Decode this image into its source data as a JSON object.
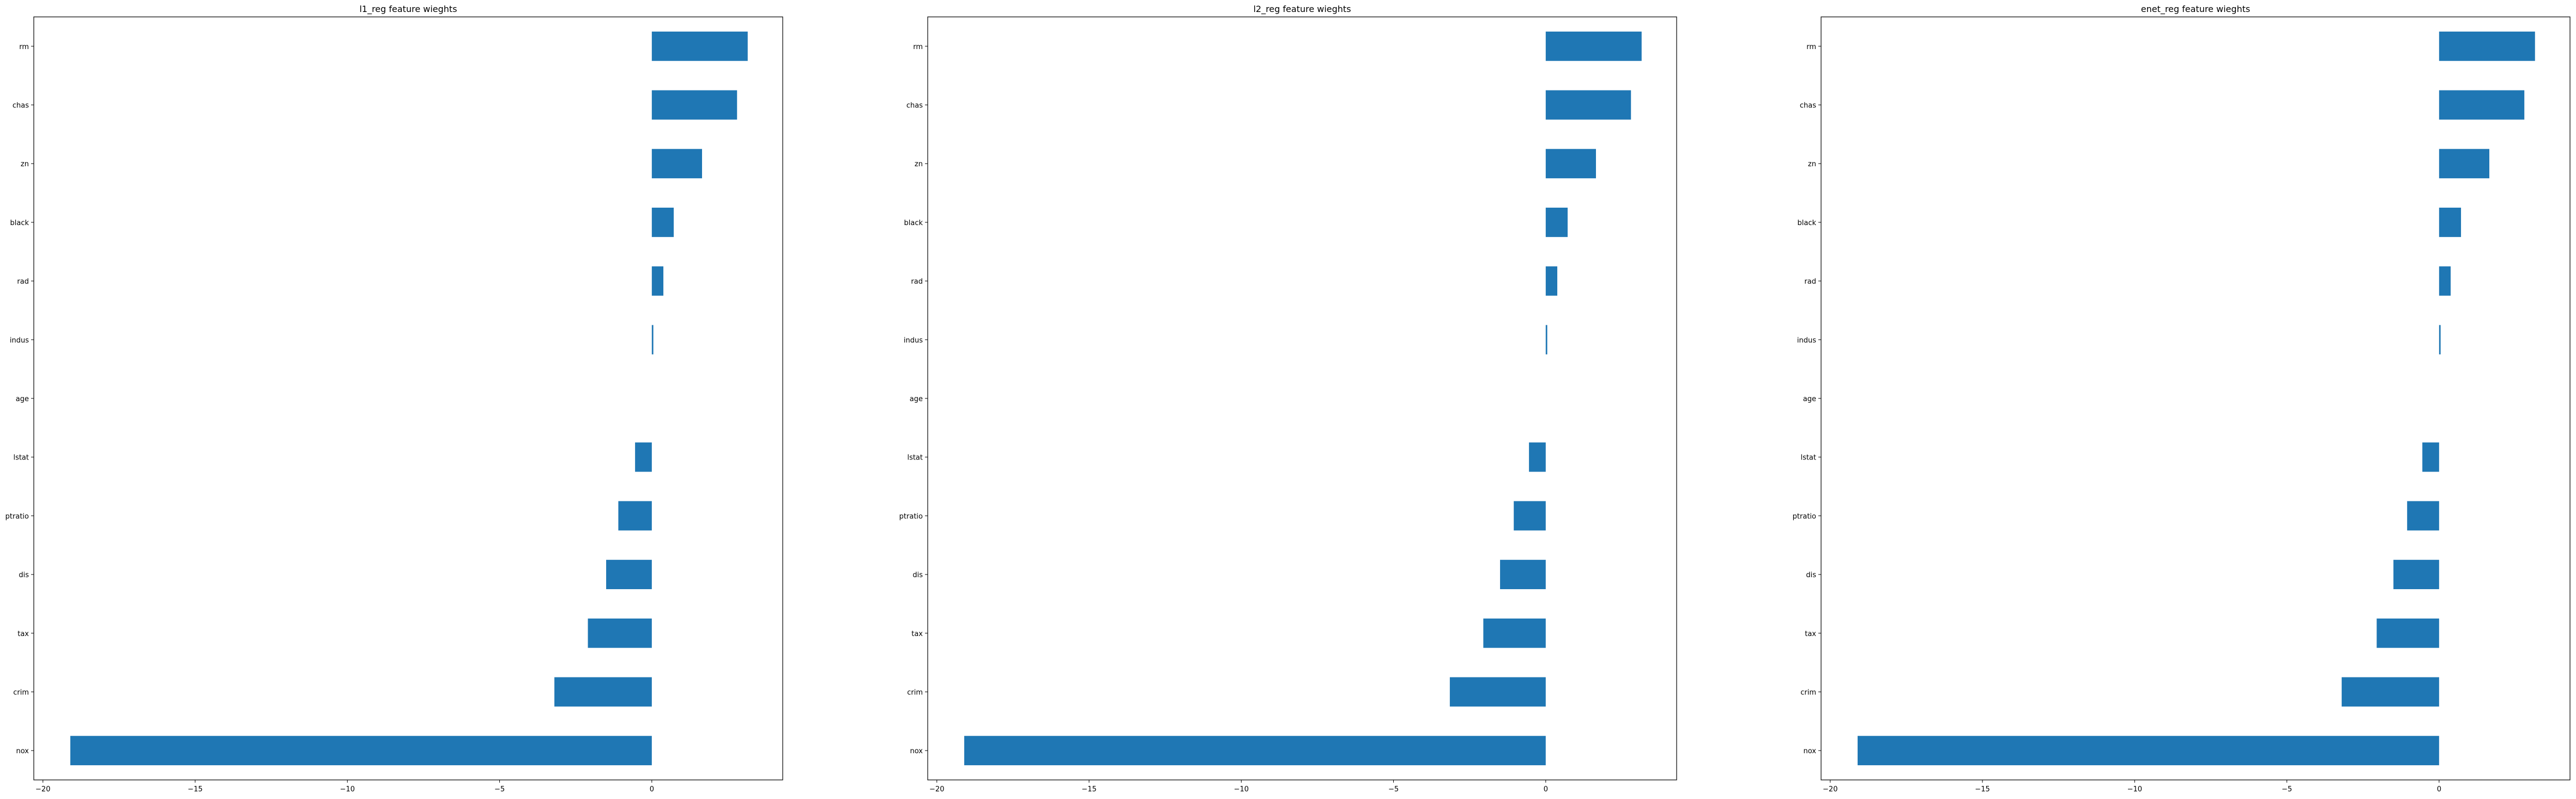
{
  "chart_data": [
    {
      "type": "bar",
      "orientation": "horizontal",
      "title": "l1_reg feature wieghts",
      "categories": [
        "nox",
        "crim",
        "tax",
        "dis",
        "ptratio",
        "lstat",
        "age",
        "indus",
        "rad",
        "black",
        "zn",
        "chas",
        "rm"
      ],
      "values": [
        -19.1,
        -3.2,
        -2.1,
        -1.5,
        -1.1,
        -0.55,
        0.0,
        0.05,
        0.38,
        0.72,
        1.65,
        2.8,
        3.15
      ],
      "xlim": [
        -20.3,
        4.3
      ],
      "xticks": [
        -20,
        -15,
        -10,
        -5,
        0
      ],
      "xticklabels": [
        "−20",
        "−15",
        "−10",
        "−5",
        "0"
      ],
      "bar_color": "#1f77b4",
      "grid": false,
      "legend": "none"
    },
    {
      "type": "bar",
      "orientation": "horizontal",
      "title": "l2_reg feature wieghts",
      "categories": [
        "nox",
        "crim",
        "tax",
        "dis",
        "ptratio",
        "lstat",
        "age",
        "indus",
        "rad",
        "black",
        "zn",
        "chas",
        "rm"
      ],
      "values": [
        -19.1,
        -3.15,
        -2.05,
        -1.5,
        -1.05,
        -0.55,
        0.0,
        0.05,
        0.38,
        0.72,
        1.65,
        2.8,
        3.15
      ],
      "xlim": [
        -20.3,
        4.3
      ],
      "xticks": [
        -20,
        -15,
        -10,
        -5,
        0
      ],
      "xticklabels": [
        "−20",
        "−15",
        "−10",
        "−5",
        "0"
      ],
      "bar_color": "#1f77b4",
      "grid": false,
      "legend": "none"
    },
    {
      "type": "bar",
      "orientation": "horizontal",
      "title": "enet_reg feature wieghts",
      "categories": [
        "nox",
        "crim",
        "tax",
        "dis",
        "ptratio",
        "lstat",
        "age",
        "indus",
        "rad",
        "black",
        "zn",
        "chas",
        "rm"
      ],
      "values": [
        -19.1,
        -3.2,
        -2.05,
        -1.5,
        -1.05,
        -0.55,
        0.0,
        0.05,
        0.38,
        0.72,
        1.65,
        2.8,
        3.15
      ],
      "xlim": [
        -20.3,
        4.3
      ],
      "xticks": [
        -20,
        -15,
        -10,
        -5,
        0
      ],
      "xticklabels": [
        "−20",
        "−15",
        "−10",
        "−5",
        "0"
      ],
      "bar_color": "#1f77b4",
      "grid": false,
      "legend": "none"
    }
  ]
}
